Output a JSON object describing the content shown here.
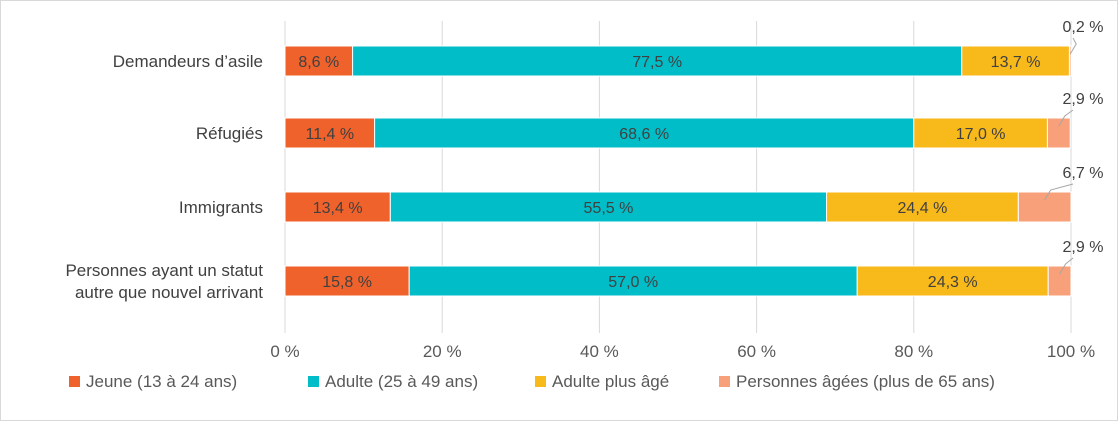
{
  "chart_data": {
    "type": "bar",
    "orientation": "horizontal",
    "stacked": "percent",
    "categories": [
      [
        "Demandeurs d’asile"
      ],
      [
        "Réfugiés"
      ],
      [
        "Immigrants"
      ],
      [
        "Personnes ayant un statut",
        "autre que nouvel arrivant"
      ]
    ],
    "series": [
      {
        "name": "Jeune (13 à 24 ans)",
        "color": "#F0622B",
        "values": [
          8.6,
          11.4,
          13.4,
          15.8
        ],
        "labels": [
          "8,6 %",
          "11,4 %",
          "13,4 %",
          "15,8 %"
        ]
      },
      {
        "name": "Adulte (25 à 49 ans)",
        "color": "#00BDC8",
        "values": [
          77.5,
          68.6,
          55.5,
          57.0
        ],
        "labels": [
          "77,5 %",
          "68,6 %",
          "55,5 %",
          "57,0 %"
        ]
      },
      {
        "name": "Adulte plus âgé",
        "color": "#F8B91A",
        "values": [
          13.7,
          17.0,
          24.4,
          24.3
        ],
        "labels": [
          "13,7 %",
          "17,0 %",
          "24,4 %",
          "24,3 %"
        ]
      },
      {
        "name": "Personnes âgées (plus de 65 ans)",
        "color": "#F7A07A",
        "values": [
          0.2,
          2.9,
          6.7,
          2.9
        ],
        "labels": [
          "0,2 %",
          "2,9 %",
          "6,7 %",
          "2,9 %"
        ]
      }
    ],
    "xlim": [
      0,
      100
    ],
    "xticks": [
      "0 %",
      "20 %",
      "40 %",
      "60 %",
      "80 %",
      "100 %"
    ],
    "grid": true,
    "legend_position": "bottom",
    "title": "",
    "xlabel": "",
    "ylabel": ""
  }
}
